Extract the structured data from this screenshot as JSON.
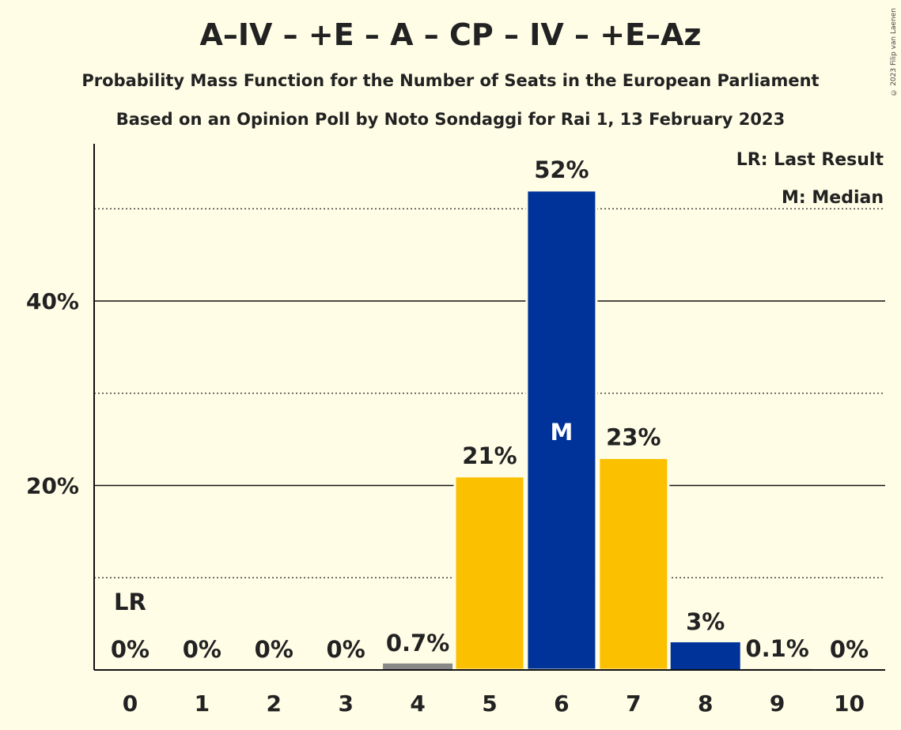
{
  "header": {
    "title": "A–IV – +E – A – CP – IV – +E–Az",
    "subtitle": "Probability Mass Function for the Number of Seats in the European Parliament",
    "subtitle2": "Based on an Opinion Poll by Noto Sondaggi for Rai 1, 13 February 2023",
    "copyright": "© 2023 Filip van Laenen"
  },
  "legend": {
    "last_result": "LR: Last Result",
    "median": "M: Median"
  },
  "chart_data": {
    "type": "bar",
    "categories": [
      "0",
      "1",
      "2",
      "3",
      "4",
      "5",
      "6",
      "7",
      "8",
      "9",
      "10"
    ],
    "values": [
      0,
      0,
      0,
      0,
      0.7,
      21,
      52,
      23,
      3,
      0.1,
      0
    ],
    "value_labels": [
      "0%",
      "0%",
      "0%",
      "0%",
      "0.7%",
      "21%",
      "52%",
      "23%",
      "3%",
      "0.1%",
      "0%"
    ],
    "bar_colors": [
      "#888888",
      "#888888",
      "#888888",
      "#888888",
      "#888888",
      "#fbc000",
      "#003399",
      "#fbc000",
      "#003399",
      "#888888",
      "#888888"
    ],
    "ytick_labels": [
      "20%",
      "40%"
    ],
    "ytick_values": [
      20,
      40
    ],
    "dotted_gridlines": [
      10,
      30,
      50
    ],
    "ylim": [
      0,
      57
    ],
    "last_result_marker": {
      "category": "0",
      "label": "LR"
    },
    "median_marker": {
      "category": "6",
      "label": "M"
    },
    "legend_position": "top-right"
  }
}
